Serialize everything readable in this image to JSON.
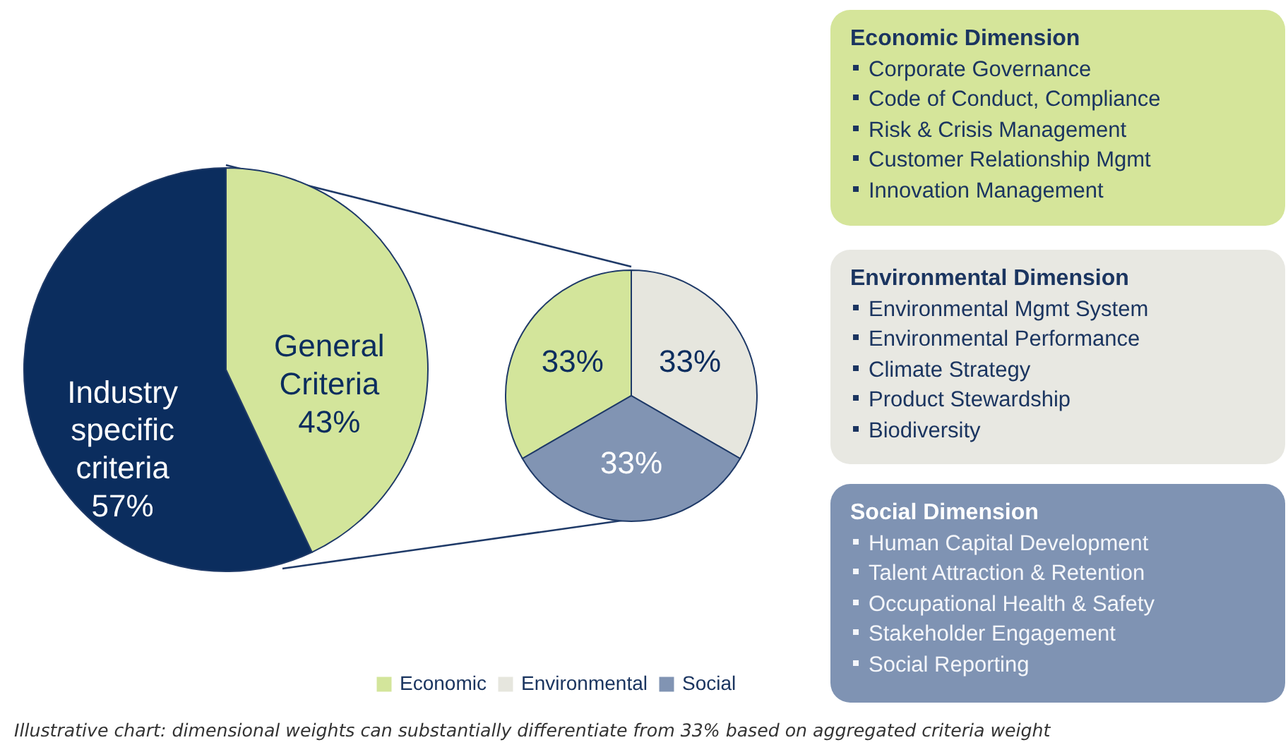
{
  "chart_data": [
    {
      "type": "pie",
      "categories": [
        "Industry specific criteria",
        "General Criteria"
      ],
      "values": [
        57,
        43
      ],
      "value_labels": [
        "57%",
        "43%"
      ],
      "colors": [
        "#0b2d5e",
        "#d3e59b"
      ],
      "annotations": [
        "Illustrative chart: dimensional weights can substantially differentiate from 33% based on aggregated criteria weight"
      ]
    },
    {
      "type": "pie",
      "categories": [
        "Economic",
        "Environmental",
        "Social"
      ],
      "values": [
        33,
        33,
        33
      ],
      "value_labels": [
        "33%",
        "33%",
        "33%"
      ],
      "colors": [
        "#d3e59b",
        "#e6e6de",
        "#8194b3"
      ],
      "legend": "bottom"
    },
    {
      "type": "other",
      "title": "Economic Dimension",
      "annotations": [
        "Corporate Governance",
        "Code of Conduct, Compliance",
        "Risk & Crisis Management",
        "Customer Relationship Mgmt",
        "Innovation Management"
      ]
    },
    {
      "type": "other",
      "title": "Environmental Dimension",
      "annotations": [
        "Environmental Mgmt System",
        "Environmental Performance",
        "Climate Strategy",
        "Product Stewardship",
        "Biodiversity"
      ]
    },
    {
      "type": "other",
      "title": "Social Dimension",
      "annotations": [
        "Human Capital Development",
        "Talent Attraction & Retention",
        "Occupational Health & Safety",
        "Stakeholder Engagement",
        "Social Reporting"
      ]
    }
  ]
}
